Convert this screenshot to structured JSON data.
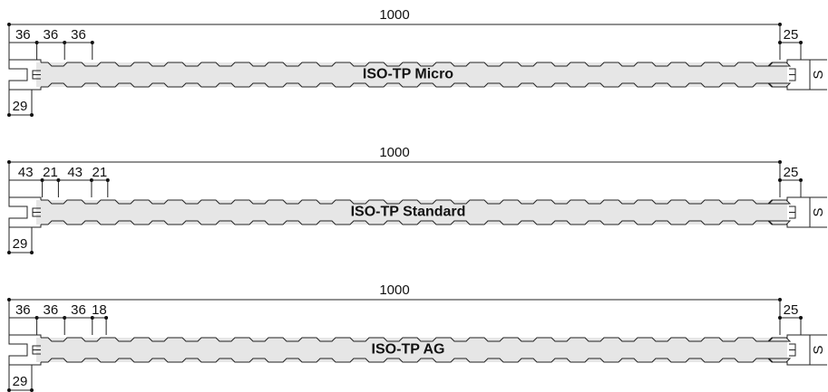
{
  "panels": [
    {
      "label": "ISO-TP Micro",
      "overall": 1000,
      "dims": [
        36,
        36,
        36
      ],
      "joint_right": 25,
      "thickness": "S",
      "joint_left": 29
    },
    {
      "label": "ISO-TP Standard",
      "overall": 1000,
      "dims": [
        43,
        21,
        43,
        21
      ],
      "joint_right": 25,
      "thickness": "S",
      "joint_left": 29
    },
    {
      "label": "ISO-TP AG",
      "overall": 1000,
      "dims": [
        36,
        36,
        36,
        18
      ],
      "joint_right": 25,
      "thickness": "S",
      "joint_left": 29
    }
  ]
}
